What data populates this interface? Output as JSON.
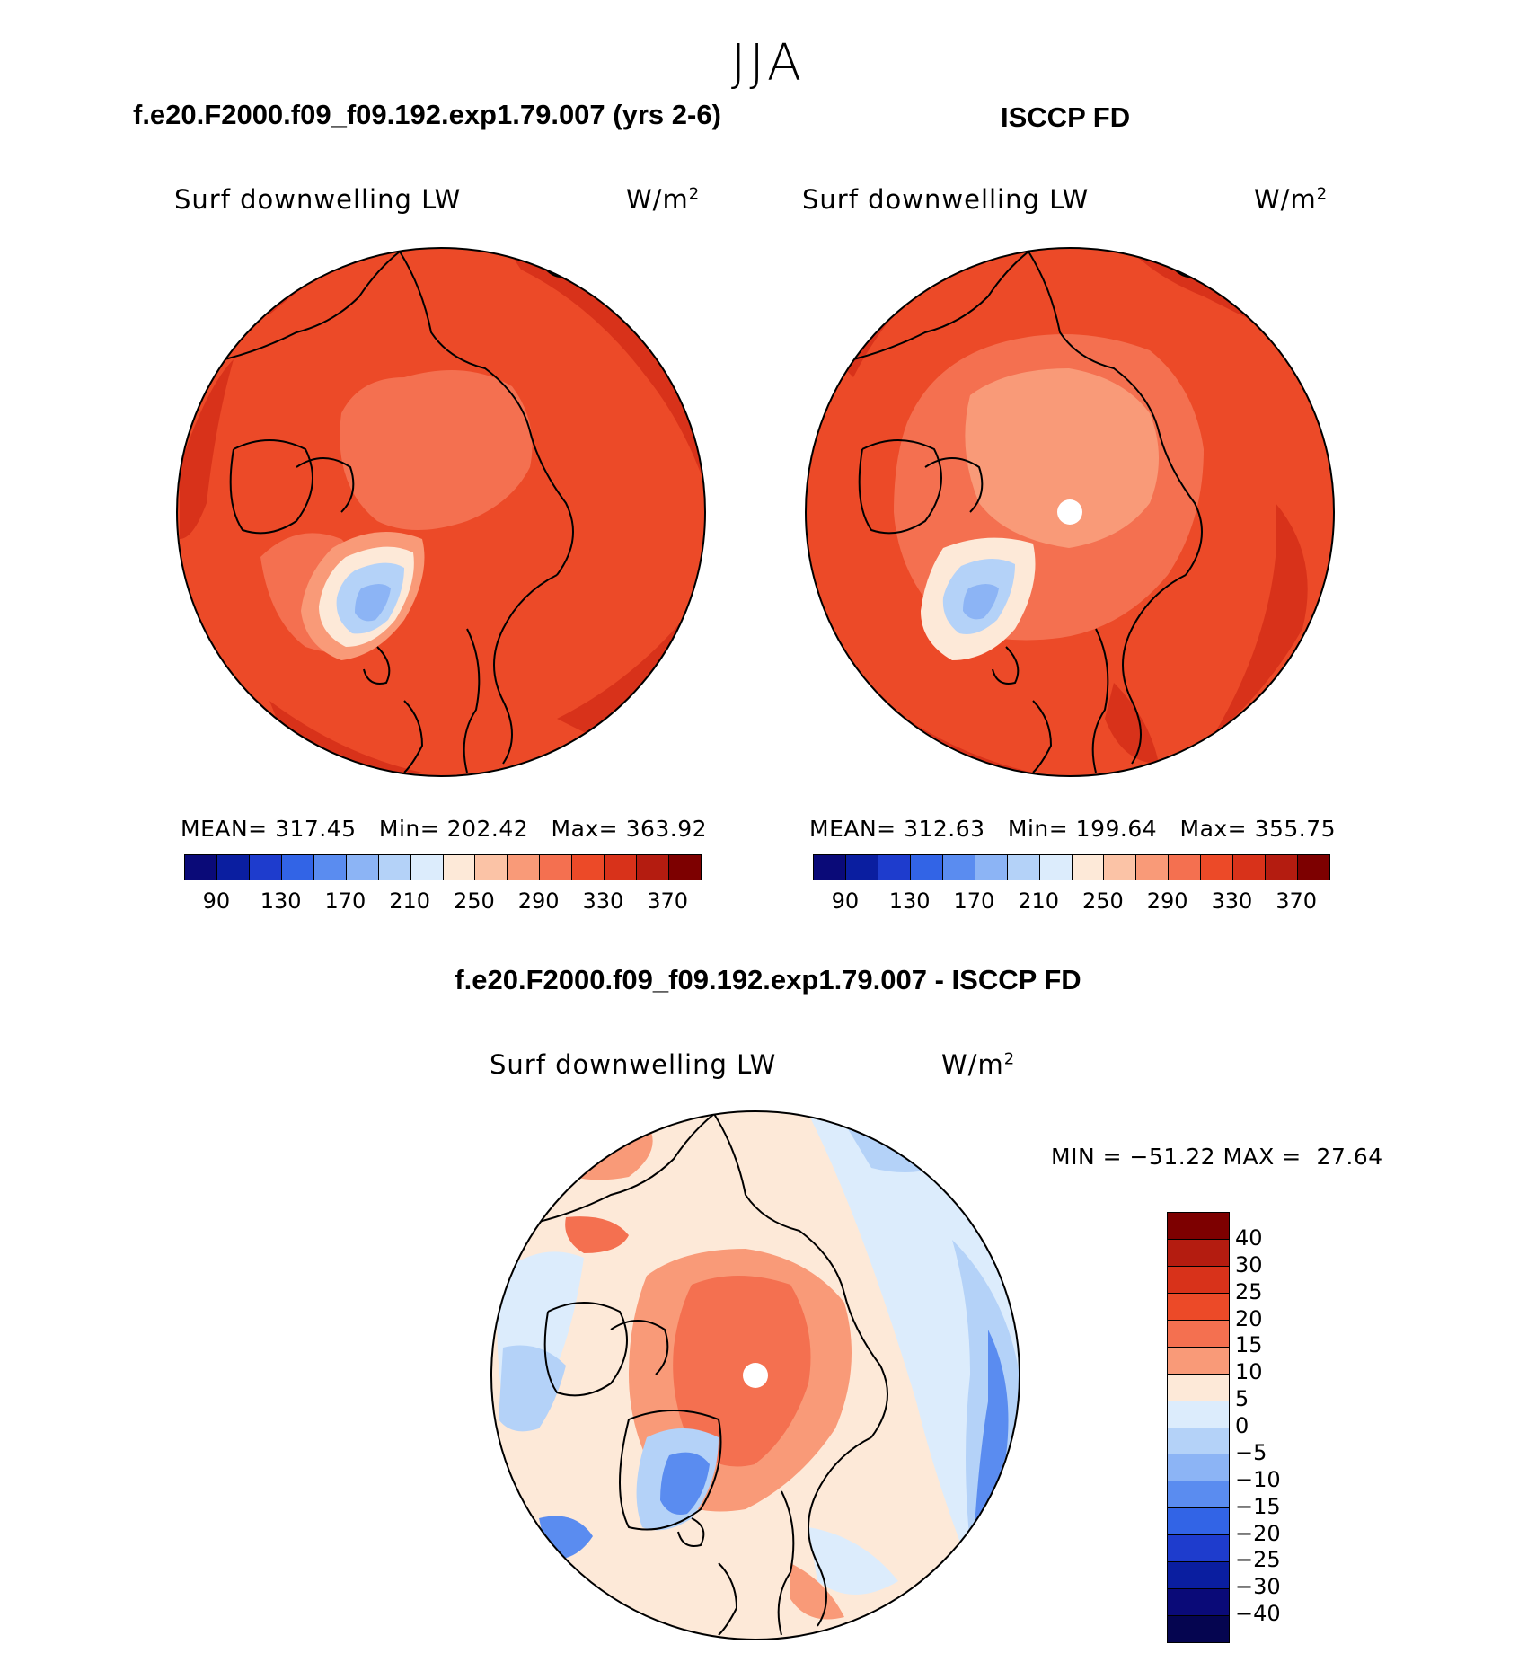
{
  "season": "JJA",
  "panels": [
    {
      "title": "f.e20.F2000.f09_f09.192.exp1.79.007 (yrs 2-6)",
      "variable": "Surf downwelling LW",
      "units": "W/m",
      "units_exp": "2",
      "mean_label": "MEAN=",
      "mean": "317.45",
      "min_label": "Min=",
      "min": "202.42",
      "max_label": "Max=",
      "max": "363.92"
    },
    {
      "title": "ISCCP FD",
      "variable": "Surf downwelling LW",
      "units": "W/m",
      "units_exp": "2",
      "mean_label": "MEAN=",
      "mean": "312.63",
      "min_label": "Min=",
      "min": "199.64",
      "max_label": "Max=",
      "max": "355.75"
    }
  ],
  "abs_colorbar": {
    "colors": [
      "#0a0a78",
      "#0a1ea0",
      "#1e3ccd",
      "#3264e6",
      "#5a8cf0",
      "#8cb4f5",
      "#b4d2f8",
      "#dcecfc",
      "#fde9d8",
      "#fbc3a6",
      "#f99a78",
      "#f47050",
      "#ec4a28",
      "#d8321a",
      "#b41c10",
      "#7d0000"
    ],
    "ticks": [
      "90",
      "130",
      "170",
      "210",
      "250",
      "290",
      "330",
      "370"
    ]
  },
  "diff_panel": {
    "title": "f.e20.F2000.f09_f09.192.exp1.79.007 - ISCCP FD",
    "variable": "Surf downwelling LW",
    "units": "W/m",
    "units_exp": "2",
    "minmax": "MIN = −51.22 MAX =  27.64"
  },
  "diff_colorbar": {
    "colors": [
      "#7d0000",
      "#b41c10",
      "#d8321a",
      "#ec4a28",
      "#f47050",
      "#f99a78",
      "#fde9d8",
      "#dcecfc",
      "#b4d2f8",
      "#8cb4f5",
      "#5a8cf0",
      "#3264e6",
      "#1e3ccd",
      "#0a1ea0",
      "#0a0a78",
      "#050550"
    ],
    "labels": [
      "40",
      "30",
      "25",
      "20",
      "15",
      "10",
      "5",
      "0",
      "−5",
      "−10",
      "−15",
      "−20",
      "−25",
      "−30",
      "−40"
    ]
  },
  "map_colors": {
    "outer": "#d8321a",
    "main": "#ec4a28",
    "inner": "#f47050",
    "pole_ref": "#f99a78",
    "greenland_edge": "#fde9d8",
    "greenland_core": "#b4d2f8",
    "greenland_deep": "#8cb4f5",
    "diff_base": "#fde9d8",
    "diff_pos": "#f47050",
    "diff_pos2": "#f99a78",
    "diff_neg": "#b4d2f8",
    "diff_neg2": "#5a8cf0",
    "diff_neg3": "#dcecfc"
  }
}
